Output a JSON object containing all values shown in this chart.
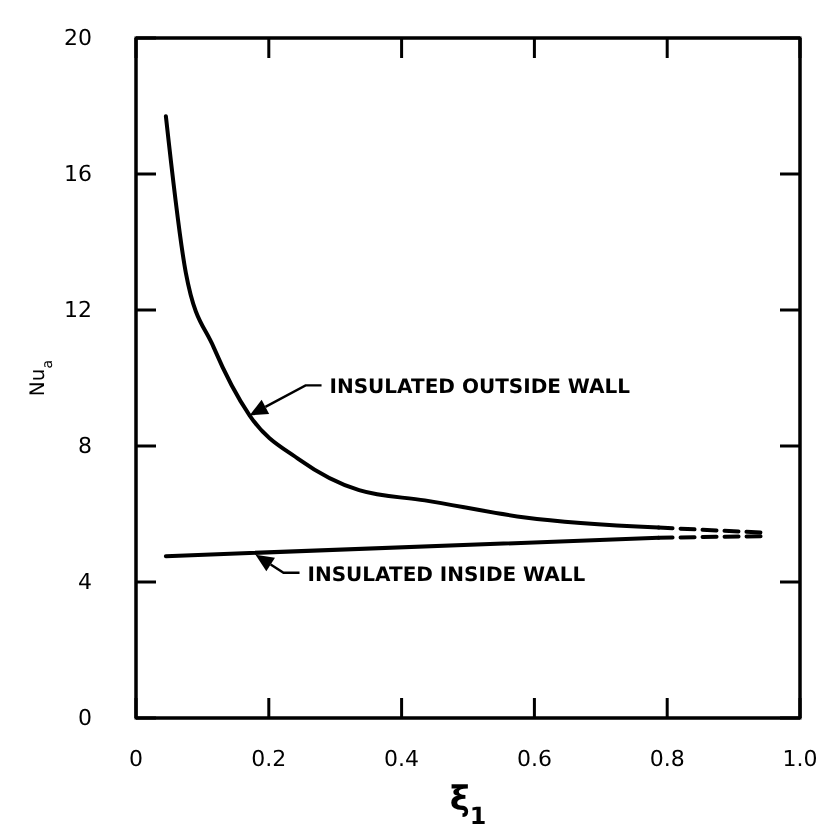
{
  "chart_data": {
    "type": "line",
    "xlabel": "ξ$_{1}$",
    "ylabel": "Nu$_{a}$",
    "xlim": [
      0,
      1
    ],
    "ylim": [
      0,
      20
    ],
    "xticks": [
      0,
      0.2,
      0.4,
      0.6,
      0.8,
      {
        "value": 1,
        "label": "1.0"
      }
    ],
    "yticks": [
      0,
      4,
      8,
      12,
      16,
      20
    ],
    "grid": false,
    "marker": "none",
    "series": [
      {
        "color": "#000000",
        "line_style": "solid",
        "x": [
          0.045,
          0.075,
          0.117,
          0.171,
          0.246,
          0.336,
          0.435,
          0.586,
          0.787
        ],
        "values": [
          17.7,
          13.1,
          10.9,
          8.9,
          7.6,
          6.7,
          6.4,
          5.9,
          5.6
        ]
      },
      {
        "color": "#000000",
        "line_style": "dashed",
        "x": [
          0.787,
          0.946
        ],
        "values": [
          5.6,
          5.45
        ]
      },
      {
        "color": "#000000",
        "line_style": "solid",
        "x": [
          0.045,
          0.787
        ],
        "values": [
          4.76,
          5.3
        ]
      },
      {
        "color": "#000000",
        "line_style": "dashed",
        "x": [
          0.787,
          0.946
        ],
        "values": [
          5.3,
          5.35
        ]
      }
    ],
    "annotations": [
      {
        "text": "INSULATED OUTSIDE WALL",
        "x": 0.171,
        "y": 8.9
      },
      {
        "text": "INSULATED INSIDE WALL",
        "x": 0.18,
        "y": 4.8
      }
    ]
  }
}
